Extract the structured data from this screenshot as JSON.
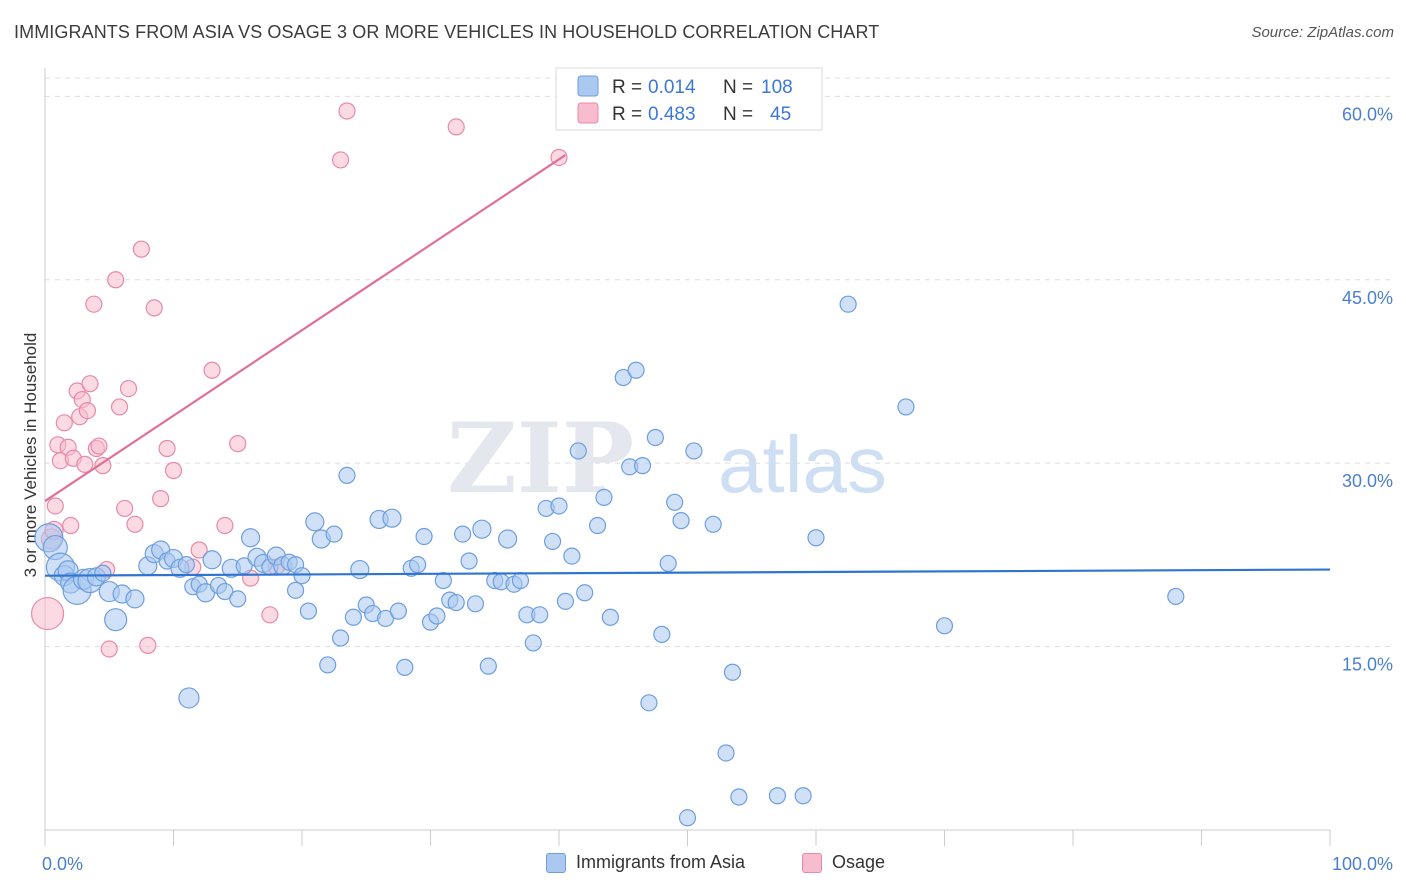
{
  "title": "IMMIGRANTS FROM ASIA VS OSAGE 3 OR MORE VEHICLES IN HOUSEHOLD CORRELATION CHART",
  "source": "Source: ZipAtlas.com",
  "watermark": {
    "zip": "ZIP",
    "atlas": "atlas"
  },
  "colors": {
    "blue_fill": "#aac8f0",
    "blue_stroke": "#6d9ee0",
    "blue_line": "#2f74d0",
    "pink_fill": "#f7bccd",
    "pink_stroke": "#e88aa6",
    "pink_line": "#e0709a",
    "grid": "#dddddd",
    "tick_text": "#4a7fd0"
  },
  "legend": [
    {
      "r_label": "R =",
      "r_value": "0.014",
      "n_label": "N =",
      "n_value": "108"
    },
    {
      "r_label": "R =",
      "r_value": "0.483",
      "n_label": "N =",
      "n_value": "45"
    }
  ],
  "chart_data": {
    "type": "scatter",
    "title": "IMMIGRANTS FROM ASIA VS OSAGE 3 OR MORE VEHICLES IN HOUSEHOLD CORRELATION CHART",
    "xlabel": "",
    "ylabel": "3 or more Vehicles in Household",
    "xlim": [
      0,
      100
    ],
    "ylim": [
      0,
      61.5
    ],
    "x_tick_labels": [
      "0.0%",
      "100.0%"
    ],
    "y_ticks": [
      15,
      30,
      45,
      60
    ],
    "y_tick_labels": [
      "15.0%",
      "30.0%",
      "45.0%",
      "60.0%"
    ],
    "grid": true,
    "series": [
      {
        "name": "Immigrants from Asia",
        "color": "#aac8f0",
        "trend": {
          "x": [
            0,
            100
          ],
          "y": [
            20.8,
            21.3
          ]
        },
        "points": [
          [
            0.3,
            23.9,
            14
          ],
          [
            0.8,
            23.1,
            12
          ],
          [
            1.2,
            21.5,
            14
          ],
          [
            1.5,
            20.8,
            10
          ],
          [
            1.8,
            21.2,
            10
          ],
          [
            2.0,
            20.2,
            10
          ],
          [
            2.5,
            19.6,
            14
          ],
          [
            3.0,
            20.5,
            10
          ],
          [
            3.5,
            20.4,
            12
          ],
          [
            4.0,
            20.7,
            9
          ],
          [
            4.5,
            21.0,
            8
          ],
          [
            5.0,
            19.5,
            10
          ],
          [
            5.5,
            17.2,
            11
          ],
          [
            6.0,
            19.3,
            9
          ],
          [
            7.0,
            18.9,
            9
          ],
          [
            8.0,
            21.6,
            9
          ],
          [
            8.5,
            22.6,
            9
          ],
          [
            9.0,
            22.9,
            9
          ],
          [
            9.5,
            22.0,
            8
          ],
          [
            10.0,
            22.2,
            9
          ],
          [
            10.5,
            21.4,
            9
          ],
          [
            11.0,
            21.7,
            8
          ],
          [
            11.2,
            10.8,
            10
          ],
          [
            11.5,
            19.9,
            8
          ],
          [
            12.0,
            20.1,
            8
          ],
          [
            12.5,
            19.4,
            9
          ],
          [
            13.0,
            22.1,
            9
          ],
          [
            13.5,
            20.0,
            8
          ],
          [
            14.0,
            19.5,
            8
          ],
          [
            14.5,
            21.4,
            9
          ],
          [
            15.0,
            18.9,
            8
          ],
          [
            15.5,
            21.6,
            8
          ],
          [
            16.0,
            23.9,
            9
          ],
          [
            16.5,
            22.3,
            9
          ],
          [
            17.0,
            21.8,
            9
          ],
          [
            17.5,
            21.5,
            8
          ],
          [
            18.0,
            22.4,
            9
          ],
          [
            18.5,
            21.6,
            9
          ],
          [
            19.0,
            21.9,
            8
          ],
          [
            19.5,
            21.7,
            8
          ],
          [
            19.5,
            19.6,
            8
          ],
          [
            20.0,
            20.8,
            8
          ],
          [
            20.5,
            17.9,
            8
          ],
          [
            21.0,
            25.2,
            9
          ],
          [
            21.5,
            23.8,
            9
          ],
          [
            22.0,
            13.5,
            8
          ],
          [
            22.5,
            24.2,
            8
          ],
          [
            23.0,
            15.7,
            8
          ],
          [
            23.5,
            29.0,
            8
          ],
          [
            24.0,
            17.4,
            8
          ],
          [
            24.5,
            21.3,
            9
          ],
          [
            25.0,
            18.4,
            8
          ],
          [
            25.5,
            17.7,
            8
          ],
          [
            26.0,
            25.4,
            9
          ],
          [
            26.5,
            17.3,
            8
          ],
          [
            27.0,
            25.5,
            9
          ],
          [
            27.5,
            17.9,
            8
          ],
          [
            28.0,
            13.3,
            8
          ],
          [
            28.5,
            21.4,
            8
          ],
          [
            29.0,
            21.7,
            8
          ],
          [
            29.5,
            24.0,
            8
          ],
          [
            30.0,
            17.0,
            8
          ],
          [
            30.5,
            17.5,
            8
          ],
          [
            31.0,
            20.4,
            8
          ],
          [
            31.5,
            18.8,
            8
          ],
          [
            32.0,
            18.6,
            8
          ],
          [
            32.5,
            24.2,
            8
          ],
          [
            33.0,
            22.0,
            8
          ],
          [
            33.5,
            18.5,
            8
          ],
          [
            34.0,
            24.6,
            9
          ],
          [
            34.5,
            13.4,
            8
          ],
          [
            35.0,
            20.4,
            8
          ],
          [
            35.5,
            20.3,
            8
          ],
          [
            36.0,
            23.8,
            9
          ],
          [
            36.5,
            20.1,
            8
          ],
          [
            37.0,
            20.4,
            8
          ],
          [
            37.5,
            17.6,
            8
          ],
          [
            38.0,
            15.3,
            8
          ],
          [
            38.5,
            17.6,
            8
          ],
          [
            39.0,
            26.3,
            8
          ],
          [
            39.5,
            23.6,
            8
          ],
          [
            40.0,
            26.5,
            8
          ],
          [
            40.5,
            18.7,
            8
          ],
          [
            41.0,
            22.4,
            8
          ],
          [
            41.5,
            31.0,
            8
          ],
          [
            42.0,
            19.4,
            8
          ],
          [
            43.0,
            24.9,
            8
          ],
          [
            43.5,
            27.2,
            8
          ],
          [
            44.0,
            17.4,
            8
          ],
          [
            45.0,
            37.0,
            8
          ],
          [
            45.5,
            29.7,
            8
          ],
          [
            46.0,
            37.6,
            8
          ],
          [
            46.5,
            29.8,
            8
          ],
          [
            47.0,
            10.4,
            8
          ],
          [
            47.5,
            32.1,
            8
          ],
          [
            48.0,
            16.0,
            8
          ],
          [
            48.5,
            21.8,
            8
          ],
          [
            49.0,
            26.8,
            8
          ],
          [
            49.5,
            25.3,
            8
          ],
          [
            50.0,
            1.0,
            8
          ],
          [
            50.5,
            31.0,
            8
          ],
          [
            52.0,
            25.0,
            8
          ],
          [
            53.0,
            6.3,
            8
          ],
          [
            53.5,
            12.9,
            8
          ],
          [
            54.0,
            2.7,
            8
          ],
          [
            57.0,
            2.8,
            8
          ],
          [
            59.0,
            2.8,
            8
          ],
          [
            60.0,
            23.9,
            8
          ],
          [
            62.5,
            43.0,
            8
          ],
          [
            67.0,
            34.6,
            8
          ],
          [
            70.0,
            16.7,
            8
          ],
          [
            88.0,
            19.1,
            8
          ]
        ]
      },
      {
        "name": "Osage",
        "color": "#f7bccd",
        "trend": {
          "x": [
            0,
            40.5
          ],
          "y": [
            26.9,
            55.2
          ]
        },
        "points": [
          [
            0.2,
            17.7,
            16
          ],
          [
            0.5,
            23.8,
            10
          ],
          [
            0.7,
            24.5,
            9
          ],
          [
            0.8,
            26.5,
            8
          ],
          [
            1.0,
            31.5,
            8
          ],
          [
            1.2,
            30.2,
            8
          ],
          [
            1.5,
            33.3,
            8
          ],
          [
            1.8,
            31.3,
            8
          ],
          [
            2.0,
            24.9,
            8
          ],
          [
            2.2,
            30.4,
            8
          ],
          [
            2.5,
            35.9,
            8
          ],
          [
            2.7,
            33.8,
            8
          ],
          [
            2.9,
            35.2,
            8
          ],
          [
            3.1,
            29.9,
            8
          ],
          [
            3.3,
            34.3,
            8
          ],
          [
            3.5,
            36.5,
            8
          ],
          [
            3.8,
            43.0,
            8
          ],
          [
            4.0,
            31.2,
            8
          ],
          [
            4.2,
            31.4,
            8
          ],
          [
            4.5,
            29.8,
            8
          ],
          [
            4.8,
            21.3,
            8
          ],
          [
            5.0,
            14.8,
            8
          ],
          [
            5.5,
            45.0,
            8
          ],
          [
            5.8,
            34.6,
            8
          ],
          [
            6.2,
            26.3,
            8
          ],
          [
            6.5,
            36.1,
            8
          ],
          [
            7.0,
            25.0,
            8
          ],
          [
            7.5,
            47.5,
            8
          ],
          [
            8.0,
            15.1,
            8
          ],
          [
            8.5,
            42.7,
            8
          ],
          [
            9.0,
            27.1,
            8
          ],
          [
            9.5,
            31.2,
            8
          ],
          [
            10.0,
            29.4,
            8
          ],
          [
            11.5,
            21.5,
            8
          ],
          [
            12.0,
            22.9,
            8
          ],
          [
            13.0,
            37.6,
            8
          ],
          [
            14.0,
            24.9,
            8
          ],
          [
            15.0,
            31.6,
            8
          ],
          [
            16.0,
            20.6,
            8
          ],
          [
            17.5,
            17.6,
            8
          ],
          [
            18.0,
            21.5,
            8
          ],
          [
            23.0,
            54.8,
            8
          ],
          [
            23.5,
            58.8,
            8
          ],
          [
            32.0,
            57.5,
            8
          ],
          [
            40.0,
            55.0,
            8
          ]
        ]
      }
    ]
  },
  "bottom_legend": [
    {
      "label": "Immigrants from Asia"
    },
    {
      "label": "Osage"
    }
  ]
}
